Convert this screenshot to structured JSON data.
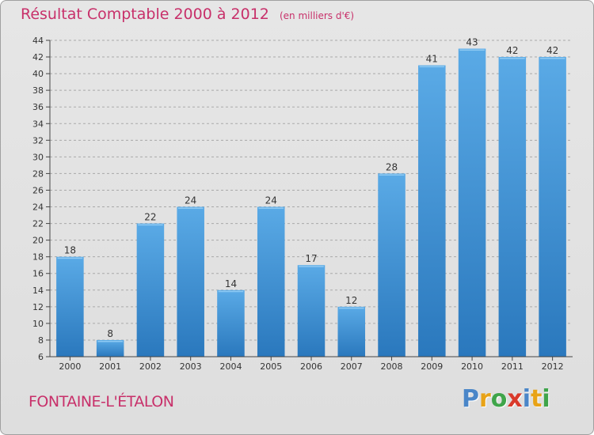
{
  "header": {
    "title": "Résultat Comptable 2000 à 2012",
    "unit": "(en milliers d'€)"
  },
  "footer": {
    "place": "FONTAINE-L'ÉTALON"
  },
  "brand": {
    "letters": [
      "P",
      "r",
      "o",
      "x",
      "i",
      "t",
      "i"
    ],
    "colors": [
      "#4a86c8",
      "#e8a317",
      "#3fa54a",
      "#d93a2b",
      "#4a86c8",
      "#e8a317",
      "#3fa54a"
    ]
  },
  "colors": {
    "bar": "#4a9ee0",
    "bar_dark": "#2f7dc4",
    "title": "#c8306a",
    "grid": "#a8a8a8"
  },
  "chart_data": {
    "type": "bar",
    "title": "Résultat Comptable 2000 à 2012",
    "ylabel": "en milliers d'€",
    "xlabel": "",
    "categories": [
      "2000",
      "2001",
      "2002",
      "2003",
      "2004",
      "2005",
      "2006",
      "2007",
      "2008",
      "2009",
      "2010",
      "2011",
      "2012"
    ],
    "values": [
      18,
      8,
      22,
      24,
      14,
      24,
      17,
      12,
      28,
      41,
      43,
      42,
      42
    ],
    "value_labels": [
      "18",
      "8",
      "22",
      "24",
      "14",
      "24",
      "17",
      "12",
      "28",
      "41",
      "43",
      "42",
      "42"
    ],
    "ylim": [
      6,
      44
    ],
    "yticks": [
      "6",
      "8",
      "10",
      "12",
      "14",
      "16",
      "18",
      "20",
      "22",
      "24",
      "26",
      "28",
      "30",
      "32",
      "34",
      "36",
      "38",
      "40",
      "42",
      "44"
    ],
    "grid": true
  }
}
